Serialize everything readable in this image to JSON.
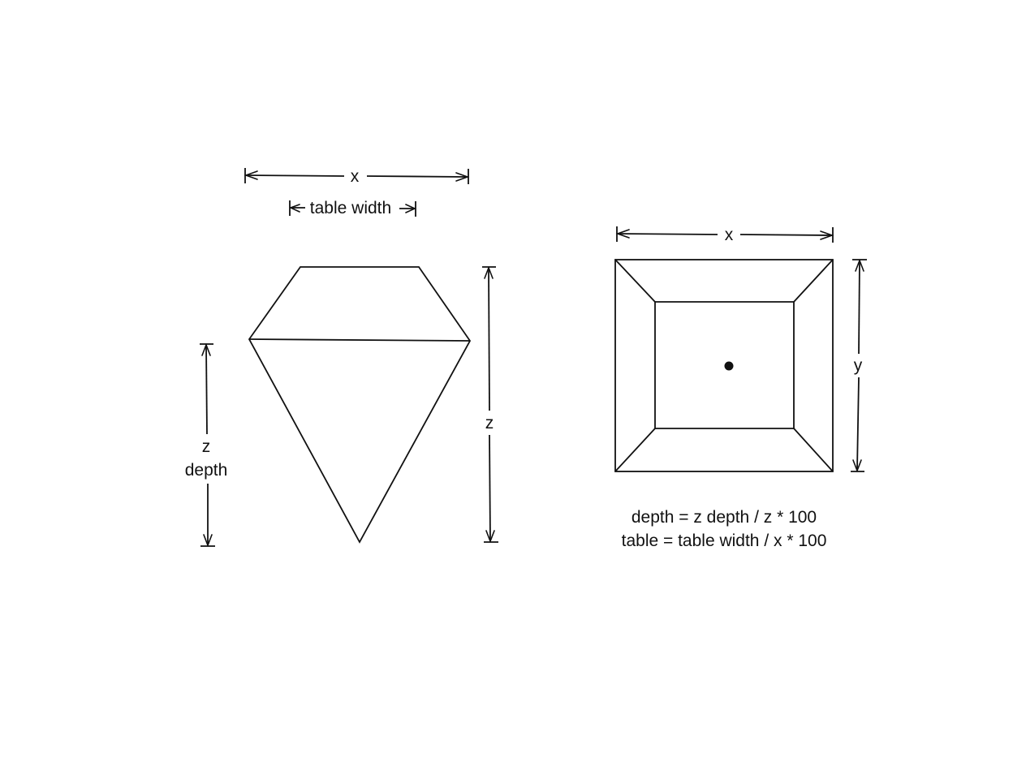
{
  "side_view": {
    "top_width_label": "x",
    "table_width_label": "table width",
    "height_label": "z",
    "depth_label_line1": "z",
    "depth_label_line2": "depth"
  },
  "top_view": {
    "width_label": "x",
    "height_label": "y"
  },
  "formulas": {
    "depth": "depth = z depth / z * 100",
    "table": "table = table width / x * 100"
  }
}
